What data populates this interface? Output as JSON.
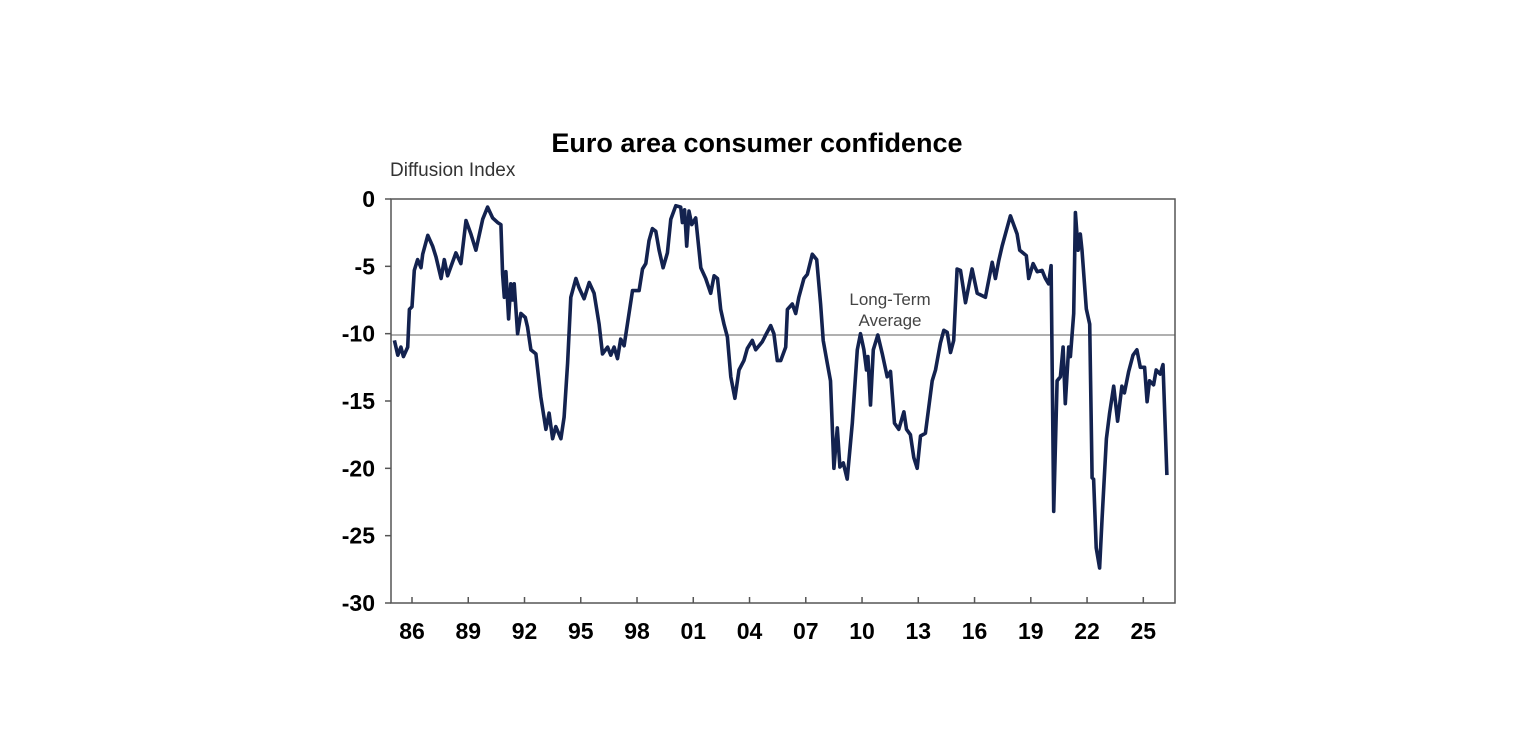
{
  "chart_data": {
    "type": "line",
    "title": "Euro area consumer confidence",
    "ylabel": "Diffusion Index",
    "xlabel": "",
    "xlim": [
      1984.88,
      2026.69
    ],
    "ylim": [
      -30,
      0
    ],
    "yticks": [
      0,
      -5,
      -10,
      -15,
      -20,
      -25,
      -30
    ],
    "ytick_labels": [
      "0",
      "-5",
      "-10",
      "-15",
      "-20",
      "-25",
      "-30"
    ],
    "xticks": [
      1986,
      1989,
      1992,
      1995,
      1998,
      2001,
      2004,
      2007,
      2010,
      2013,
      2016,
      2019,
      2022,
      2025
    ],
    "xtick_labels": [
      "86",
      "89",
      "92",
      "95",
      "98",
      "01",
      "04",
      "07",
      "10",
      "13",
      "16",
      "19",
      "22",
      "25"
    ],
    "grid": false,
    "reference_line": {
      "label_line1": "Long-Term",
      "label_line2": "Average",
      "value": -10.1,
      "color": "#808080"
    },
    "series": [
      {
        "color": "#13224f",
        "x": [
          1985.06,
          1985.24,
          1985.41,
          1985.54,
          1985.77,
          1985.86,
          1986.0,
          1986.12,
          1986.3,
          1986.48,
          1986.57,
          1986.84,
          1987.1,
          1987.28,
          1987.55,
          1987.72,
          1987.9,
          1988.34,
          1988.61,
          1988.88,
          1989.14,
          1989.41,
          1989.77,
          1990.03,
          1990.3,
          1990.57,
          1990.74,
          1990.83,
          1990.92,
          1991.01,
          1991.15,
          1991.27,
          1991.36,
          1991.45,
          1991.63,
          1991.81,
          1992.04,
          1992.16,
          1992.34,
          1992.61,
          1992.87,
          1993.14,
          1993.31,
          1993.5,
          1993.67,
          1993.94,
          1994.11,
          1994.3,
          1994.47,
          1994.74,
          1994.91,
          1995.18,
          1995.45,
          1995.71,
          1995.98,
          1996.16,
          1996.43,
          1996.6,
          1996.78,
          1996.96,
          1997.13,
          1997.31,
          1997.76,
          1998.11,
          1998.29,
          1998.47,
          1998.64,
          1998.82,
          1999.0,
          1999.18,
          1999.39,
          1999.62,
          1999.8,
          2000.07,
          2000.33,
          2000.42,
          2000.54,
          2000.65,
          2000.77,
          2000.92,
          2001.13,
          2001.4,
          2001.66,
          2001.93,
          2002.11,
          2002.29,
          2002.46,
          2002.64,
          2002.82,
          2003.0,
          2003.22,
          2003.44,
          2003.7,
          2003.88,
          2004.15,
          2004.33,
          2004.68,
          2004.86,
          2005.13,
          2005.3,
          2005.48,
          2005.66,
          2005.93,
          2006.02,
          2006.28,
          2006.46,
          2006.63,
          2006.9,
          2007.08,
          2007.35,
          2007.58,
          2007.79,
          2007.93,
          2008.15,
          2008.32,
          2008.5,
          2008.68,
          2008.82,
          2009.0,
          2009.21,
          2009.48,
          2009.75,
          2009.92,
          2010.1,
          2010.24,
          2010.31,
          2010.45,
          2010.6,
          2010.84,
          2011.08,
          2011.34,
          2011.52,
          2011.73,
          2011.96,
          2012.23,
          2012.37,
          2012.58,
          2012.76,
          2012.94,
          2013.12,
          2013.38,
          2013.74,
          2013.92,
          2014.18,
          2014.36,
          2014.54,
          2014.72,
          2014.89,
          2015.07,
          2015.25,
          2015.52,
          2015.87,
          2016.14,
          2016.58,
          2016.94,
          2017.11,
          2017.29,
          2017.47,
          2017.91,
          2018.27,
          2018.41,
          2018.76,
          2018.89,
          2019.12,
          2019.34,
          2019.6,
          2019.78,
          2019.95,
          2020.08,
          2020.22,
          2020.4,
          2020.58,
          2020.72,
          2020.84,
          2021.02,
          2021.11,
          2021.29,
          2021.38,
          2021.52,
          2021.64,
          2021.73,
          2021.96,
          2022.14,
          2022.27,
          2022.35,
          2022.49,
          2022.67,
          2022.8,
          2023.03,
          2023.2,
          2023.42,
          2023.63,
          2023.86,
          2023.99,
          2024.22,
          2024.45,
          2024.66,
          2024.84,
          2025.07,
          2025.2,
          2025.33,
          2025.55,
          2025.69,
          2025.9,
          2026.05,
          2026.26
        ],
        "y": [
          -10.5,
          -11.6,
          -11.0,
          -11.7,
          -11.0,
          -8.2,
          -8.0,
          -5.3,
          -4.5,
          -5.1,
          -4.1,
          -2.7,
          -3.5,
          -4.3,
          -5.9,
          -4.5,
          -5.7,
          -4.0,
          -4.8,
          -1.6,
          -2.6,
          -3.8,
          -1.5,
          -0.6,
          -1.4,
          -1.75,
          -1.9,
          -5.6,
          -7.3,
          -5.4,
          -8.9,
          -6.3,
          -7.5,
          -6.3,
          -10.0,
          -8.5,
          -8.8,
          -9.5,
          -11.2,
          -11.5,
          -14.7,
          -17.1,
          -15.9,
          -17.8,
          -16.9,
          -17.8,
          -16.2,
          -12.2,
          -7.3,
          -5.9,
          -6.6,
          -7.4,
          -6.2,
          -7.0,
          -9.3,
          -11.5,
          -11.0,
          -11.6,
          -11.0,
          -11.85,
          -10.4,
          -10.9,
          -6.8,
          -6.8,
          -5.2,
          -4.8,
          -3.1,
          -2.2,
          -2.4,
          -3.8,
          -5.1,
          -4.0,
          -1.5,
          -0.5,
          -0.6,
          -1.75,
          -0.8,
          -3.5,
          -0.9,
          -1.9,
          -1.4,
          -5.1,
          -5.9,
          -7.0,
          -5.7,
          -5.9,
          -8.2,
          -9.3,
          -10.25,
          -13.2,
          -14.8,
          -12.7,
          -12.0,
          -11.1,
          -10.5,
          -11.2,
          -10.6,
          -10.1,
          -9.4,
          -10.0,
          -12.0,
          -12.0,
          -11.0,
          -8.2,
          -7.8,
          -8.5,
          -7.3,
          -5.9,
          -5.6,
          -4.1,
          -4.5,
          -7.8,
          -10.5,
          -12.2,
          -13.5,
          -20.0,
          -17.0,
          -19.9,
          -19.6,
          -20.8,
          -16.65,
          -11.2,
          -10.0,
          -11.2,
          -12.7,
          -11.7,
          -15.3,
          -11.2,
          -10.1,
          -11.5,
          -13.2,
          -12.8,
          -16.65,
          -17.1,
          -15.8,
          -17.1,
          -17.5,
          -19.2,
          -20.0,
          -17.6,
          -17.4,
          -13.5,
          -12.7,
          -10.7,
          -9.75,
          -9.9,
          -11.4,
          -10.5,
          -5.2,
          -5.3,
          -7.7,
          -5.2,
          -7.0,
          -7.3,
          -4.7,
          -5.9,
          -4.6,
          -3.5,
          -1.25,
          -2.6,
          -3.8,
          -4.2,
          -5.9,
          -4.8,
          -5.4,
          -5.3,
          -5.9,
          -6.3,
          -4.95,
          -23.2,
          -13.5,
          -13.2,
          -11.0,
          -15.2,
          -11.0,
          -11.7,
          -8.5,
          -1.0,
          -3.8,
          -2.6,
          -3.8,
          -8.15,
          -9.3,
          -20.7,
          -20.8,
          -25.9,
          -27.4,
          -23.7,
          -17.8,
          -15.9,
          -13.9,
          -16.5,
          -13.9,
          -14.4,
          -12.8,
          -11.6,
          -11.2,
          -12.5,
          -12.5,
          -15.05,
          -13.5,
          -13.8,
          -12.7,
          -13.0,
          -12.3,
          -20.5
        ]
      }
    ]
  }
}
